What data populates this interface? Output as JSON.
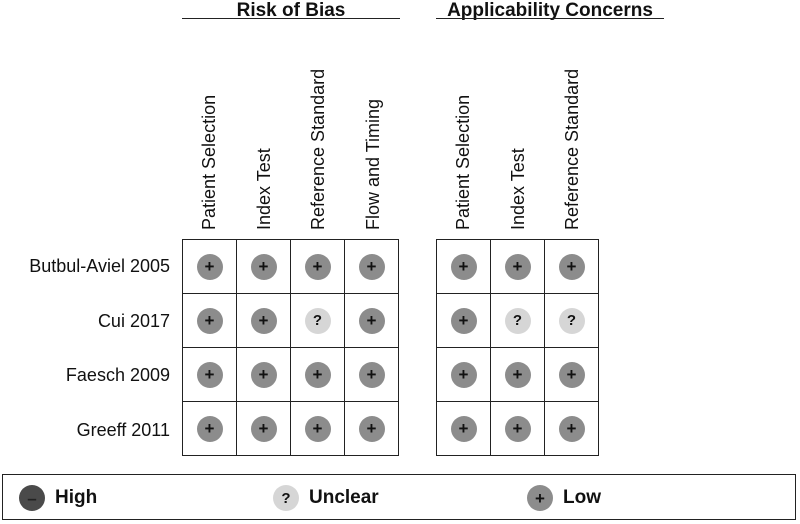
{
  "chart_data": {
    "type": "table",
    "groups": [
      {
        "title": "Risk of Bias",
        "columns": [
          "Patient Selection",
          "Index Test",
          "Reference Standard",
          "Flow and Timing"
        ]
      },
      {
        "title": "Applicability Concerns",
        "columns": [
          "Patient Selection",
          "Index Test",
          "Reference Standard"
        ]
      }
    ],
    "studies": [
      "Butbul-Aviel 2005",
      "Cui 2017",
      "Faesch 2009",
      "Greeff 2011"
    ],
    "risk_of_bias": [
      [
        "low",
        "low",
        "low",
        "low"
      ],
      [
        "low",
        "low",
        "unclear",
        "low"
      ],
      [
        "low",
        "low",
        "low",
        "low"
      ],
      [
        "low",
        "low",
        "low",
        "low"
      ]
    ],
    "applicability": [
      [
        "low",
        "low",
        "low"
      ],
      [
        "low",
        "unclear",
        "unclear"
      ],
      [
        "low",
        "low",
        "low"
      ],
      [
        "low",
        "low",
        "low"
      ]
    ],
    "symbols": {
      "low": "+",
      "unclear": "?",
      "high": "–"
    },
    "colors": {
      "low": "#8c8c8c",
      "unclear": "#d6d6d6",
      "high": "#4a4a4a"
    },
    "legend": [
      {
        "key": "high",
        "label": "High"
      },
      {
        "key": "unclear",
        "label": "Unclear"
      },
      {
        "key": "low",
        "label": "Low"
      }
    ]
  }
}
